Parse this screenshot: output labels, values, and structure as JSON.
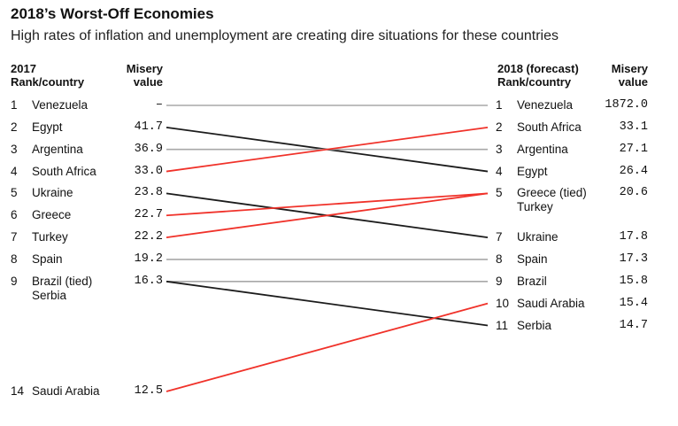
{
  "title": "2018’s Worst-Off Economies",
  "subtitle": "High rates of inflation and unemployment are creating dire situations for these countries",
  "left_header": {
    "col1_line1": "2017",
    "col1_line2": "Rank/country",
    "col2_line1": "Misery",
    "col2_line2": "value"
  },
  "right_header": {
    "col1_line1": "2018 (forecast)",
    "col1_line2": "Rank/country",
    "col2_line1": "Misery",
    "col2_line2": "value"
  },
  "colors": {
    "improved": "#f0322a",
    "worsened": "#1c1c1c",
    "unchanged": "#a8a8a8"
  },
  "chart_data": {
    "type": "slope",
    "left": [
      {
        "rank": "1",
        "country": "Venezuela",
        "value": "–"
      },
      {
        "rank": "2",
        "country": "Egypt",
        "value": "41.7"
      },
      {
        "rank": "3",
        "country": "Argentina",
        "value": "36.9"
      },
      {
        "rank": "4",
        "country": "South Africa",
        "value": "33.0"
      },
      {
        "rank": "5",
        "country": "Ukraine",
        "value": "23.8"
      },
      {
        "rank": "6",
        "country": "Greece",
        "value": "22.7"
      },
      {
        "rank": "7",
        "country": "Turkey",
        "value": "22.2"
      },
      {
        "rank": "8",
        "country": "Spain",
        "value": "19.2"
      },
      {
        "rank": "9",
        "country": "Brazil (tied)",
        "country2": "Serbia",
        "value": "16.3"
      },
      {
        "rank": "14",
        "country": "Saudi Arabia",
        "value": "12.5"
      }
    ],
    "right": [
      {
        "rank": "1",
        "country": "Venezuela",
        "value": "1872.0"
      },
      {
        "rank": "2",
        "country": "South Africa",
        "value": "33.1"
      },
      {
        "rank": "3",
        "country": "Argentina",
        "value": "27.1"
      },
      {
        "rank": "4",
        "country": "Egypt",
        "value": "26.4"
      },
      {
        "rank": "5",
        "country": "Greece (tied)",
        "country2": "Turkey",
        "value": "20.6"
      },
      {
        "rank": "7",
        "country": "Ukraine",
        "value": "17.8"
      },
      {
        "rank": "8",
        "country": "Spain",
        "value": "17.3"
      },
      {
        "rank": "9",
        "country": "Brazil",
        "value": "15.8"
      },
      {
        "rank": "10",
        "country": "Saudi Arabia",
        "value": "15.4"
      },
      {
        "rank": "11",
        "country": "Serbia",
        "value": "14.7"
      }
    ],
    "links": [
      {
        "country": "Venezuela",
        "from_rank": 1,
        "to_rank": 1,
        "change": "unchanged"
      },
      {
        "country": "Egypt",
        "from_rank": 2,
        "to_rank": 4,
        "change": "worsened"
      },
      {
        "country": "Argentina",
        "from_rank": 3,
        "to_rank": 3,
        "change": "unchanged"
      },
      {
        "country": "South Africa",
        "from_rank": 4,
        "to_rank": 2,
        "change": "improved"
      },
      {
        "country": "Ukraine",
        "from_rank": 5,
        "to_rank": 7,
        "change": "worsened"
      },
      {
        "country": "Greece",
        "from_rank": 6,
        "to_rank": 5,
        "change": "improved"
      },
      {
        "country": "Turkey",
        "from_rank": 7,
        "to_rank": 5,
        "change": "improved"
      },
      {
        "country": "Spain",
        "from_rank": 8,
        "to_rank": 8,
        "change": "unchanged"
      },
      {
        "country": "Brazil",
        "from_rank": 9,
        "to_rank": 9,
        "change": "unchanged"
      },
      {
        "country": "Serbia",
        "from_rank": 9,
        "to_rank": 11,
        "change": "worsened"
      },
      {
        "country": "Saudi Arabia",
        "from_rank": 14,
        "to_rank": 10,
        "change": "improved"
      }
    ]
  }
}
